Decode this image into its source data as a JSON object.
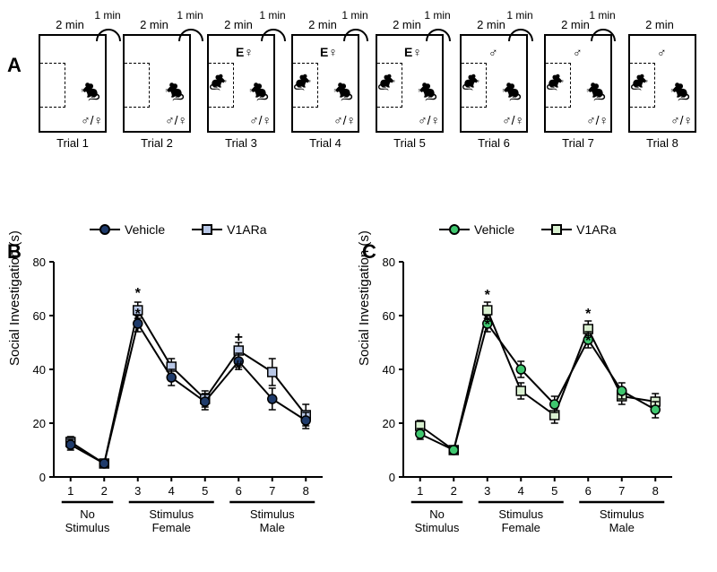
{
  "panelA": {
    "label": "A",
    "duration_label": "2 min",
    "iti_label": "1 min",
    "trials": [
      {
        "name": "Trial 1",
        "stimulus": null,
        "stim_mouse": false
      },
      {
        "name": "Trial 2",
        "stimulus": null,
        "stim_mouse": false
      },
      {
        "name": "Trial 3",
        "stimulus": "E♀",
        "stim_mouse": true
      },
      {
        "name": "Trial 4",
        "stimulus": "E♀",
        "stim_mouse": true
      },
      {
        "name": "Trial 5",
        "stimulus": "E♀",
        "stim_mouse": true
      },
      {
        "name": "Trial 6",
        "stimulus": "♂",
        "stim_mouse": true
      },
      {
        "name": "Trial 7",
        "stimulus": "♂",
        "stim_mouse": true
      },
      {
        "name": "Trial 8",
        "stimulus": "♂",
        "stim_mouse": true
      }
    ],
    "subject_label": "♂/♀"
  },
  "chartCommon": {
    "ylabel": "Social Investigation (s)",
    "ylim": [
      0,
      80
    ],
    "ytick_step": 20,
    "x_ticks": [
      1,
      2,
      3,
      4,
      5,
      6,
      7,
      8
    ],
    "x_groups": [
      {
        "label": "No\nStimulus",
        "ticks": [
          1,
          2
        ]
      },
      {
        "label": "Stimulus\nFemale",
        "ticks": [
          3,
          4,
          5
        ]
      },
      {
        "label": "Stimulus\nMale",
        "ticks": [
          6,
          7,
          8
        ]
      }
    ],
    "tick_fontsize": 13,
    "axis_color": "#000000",
    "background": "#ffffff",
    "line_width": 2,
    "marker_size": 10
  },
  "panelB": {
    "label": "B",
    "legend": [
      {
        "name": "Vehicle",
        "shape": "circle",
        "fill": "#1f3b6b",
        "stroke": "#000000"
      },
      {
        "name": "V1ARa",
        "shape": "square",
        "fill": "#b8c7e6",
        "stroke": "#000000"
      }
    ],
    "series": {
      "vehicle": {
        "y": [
          12,
          5,
          57,
          37,
          28,
          43,
          29,
          21
        ],
        "err": [
          2,
          1,
          3,
          3,
          3,
          3,
          4,
          3
        ]
      },
      "v1ara": {
        "y": [
          13,
          5,
          62,
          41,
          29,
          47,
          39,
          23
        ],
        "err": [
          2,
          1,
          3,
          3,
          3,
          3,
          5,
          4
        ]
      }
    },
    "annotations": [
      {
        "trial": 3,
        "above": "vehicle",
        "symbol": "*",
        "dy": -6
      },
      {
        "trial": 3,
        "above": "v1ara",
        "symbol": "*",
        "dy": -14
      },
      {
        "trial": 6,
        "above": "v1ara",
        "symbol": "+",
        "dy": -10
      },
      {
        "trial": 6,
        "above": "vehicle",
        "symbol": "#",
        "dy": 10
      }
    ]
  },
  "panelC": {
    "label": "C",
    "legend": [
      {
        "name": "Vehicle",
        "shape": "circle",
        "fill": "#3fc76f",
        "stroke": "#000000"
      },
      {
        "name": "V1ARa",
        "shape": "square",
        "fill": "#d9f0d0",
        "stroke": "#000000"
      }
    ],
    "series": {
      "vehicle": {
        "y": [
          16,
          10,
          57,
          40,
          27,
          51,
          32,
          25
        ],
        "err": [
          2,
          1,
          3,
          3,
          3,
          3,
          3,
          3
        ]
      },
      "v1ara": {
        "y": [
          19,
          10,
          62,
          32,
          23,
          55,
          30,
          28
        ],
        "err": [
          2,
          1,
          3,
          3,
          3,
          3,
          3,
          3
        ]
      }
    },
    "annotations": [
      {
        "trial": 3,
        "above": "vehicle",
        "symbol": "*",
        "dy": 6
      },
      {
        "trial": 3,
        "above": "v1ara",
        "symbol": "*",
        "dy": -12
      },
      {
        "trial": 6,
        "above": "vehicle",
        "symbol": "*",
        "dy": 6
      },
      {
        "trial": 6,
        "above": "v1ara",
        "symbol": "*",
        "dy": -12
      }
    ]
  }
}
